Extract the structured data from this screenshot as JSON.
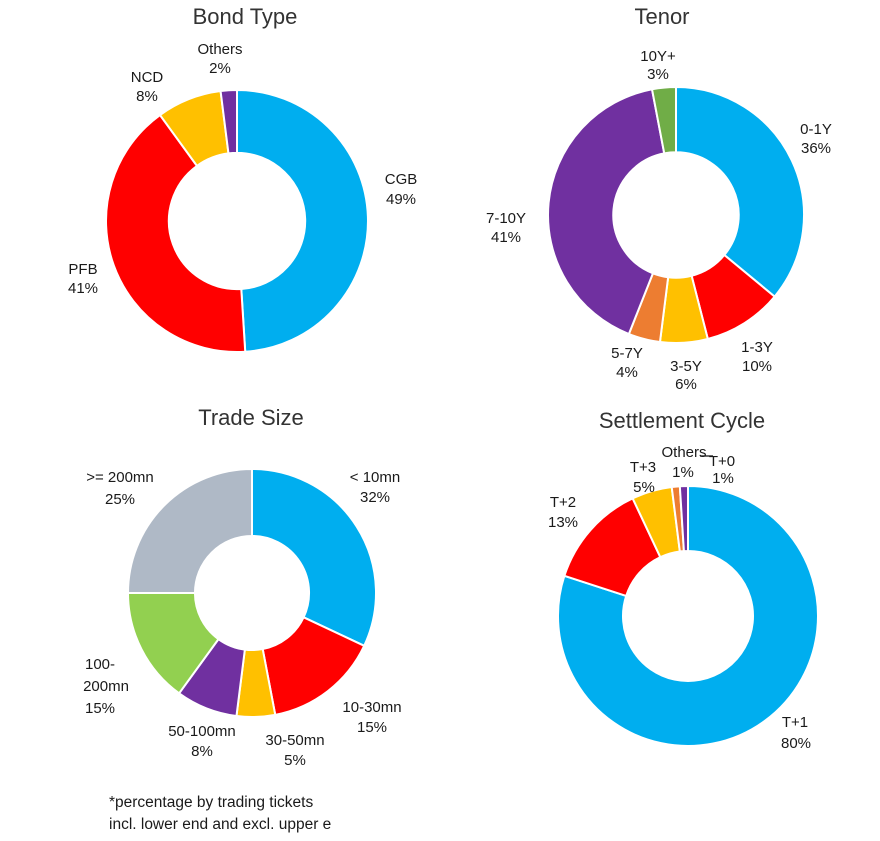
{
  "colors": {
    "background": "#FFFFFF",
    "title_text": "#333333",
    "label_text": "#1A1A1A",
    "blue": "#00AEEF",
    "red": "#FF0000",
    "gold": "#FFC000",
    "orange": "#ED7D31",
    "purple": "#7030A0",
    "green": "#70AD47",
    "light_green": "#92D050",
    "gray": "#AFB9C6"
  },
  "chart_data": [
    {
      "id": "bond-type",
      "type": "pie",
      "donut": true,
      "title": "Bond Type",
      "unit": "%",
      "categories": [
        "CGB",
        "PFB",
        "NCD",
        "Others"
      ],
      "values": [
        49,
        41,
        8,
        2
      ],
      "colors": [
        "#00AEEF",
        "#FF0000",
        "#FFC000",
        "#7030A0"
      ],
      "labels_display": [
        [
          "CGB",
          "49%"
        ],
        [
          "PFB",
          "41%"
        ],
        [
          "NCD",
          "8%"
        ],
        [
          "Others",
          "2%"
        ]
      ]
    },
    {
      "id": "tenor",
      "type": "pie",
      "donut": true,
      "title": "Tenor",
      "unit": "%",
      "categories": [
        "0-1Y",
        "1-3Y",
        "3-5Y",
        "5-7Y",
        "7-10Y",
        "10Y+"
      ],
      "values": [
        36,
        10,
        6,
        4,
        41,
        3
      ],
      "colors": [
        "#00AEEF",
        "#FF0000",
        "#FFC000",
        "#ED7D31",
        "#7030A0",
        "#70AD47"
      ],
      "labels_display": [
        [
          "0-1Y",
          "36%"
        ],
        [
          "1-3Y",
          "10%"
        ],
        [
          "3-5Y",
          "6%"
        ],
        [
          "5-7Y",
          "4%"
        ],
        [
          "7-10Y",
          "41%"
        ],
        [
          "10Y+",
          "3%"
        ]
      ]
    },
    {
      "id": "trade-size",
      "type": "pie",
      "donut": true,
      "title": "Trade Size",
      "unit": "%",
      "categories": [
        "< 10mn",
        "10-30mn",
        "30-50mn",
        "50-100mn",
        "100-200mn",
        ">= 200mn"
      ],
      "values": [
        32,
        15,
        5,
        8,
        15,
        25
      ],
      "colors": [
        "#00AEEF",
        "#FF0000",
        "#FFC000",
        "#7030A0",
        "#92D050",
        "#AFB9C6"
      ],
      "labels_display": [
        [
          "< 10mn",
          "32%"
        ],
        [
          "10-30mn",
          "15%"
        ],
        [
          "30-50mn",
          "5%"
        ],
        [
          "50-100mn",
          "8%"
        ],
        [
          "100-",
          "200mn",
          "15%"
        ],
        [
          ">= 200mn",
          "25%"
        ]
      ]
    },
    {
      "id": "settlement-cycle",
      "type": "pie",
      "donut": true,
      "title": "Settlement Cycle",
      "unit": "%",
      "categories": [
        "T+1",
        "T+2",
        "T+3",
        "Others",
        "T+0"
      ],
      "values": [
        80,
        13,
        5,
        1,
        1
      ],
      "colors": [
        "#00AEEF",
        "#FF0000",
        "#FFC000",
        "#ED7D31",
        "#7030A0"
      ],
      "labels_display": [
        [
          "T+1",
          "80%"
        ],
        [
          "T+2",
          "13%"
        ],
        [
          "T+3",
          "5%"
        ],
        [
          "Others",
          "1%"
        ],
        [
          "T+0",
          "1%"
        ]
      ]
    }
  ],
  "footnote": {
    "lines": [
      "*percentage by trading tickets",
      "incl. lower end and excl. upper e"
    ]
  }
}
